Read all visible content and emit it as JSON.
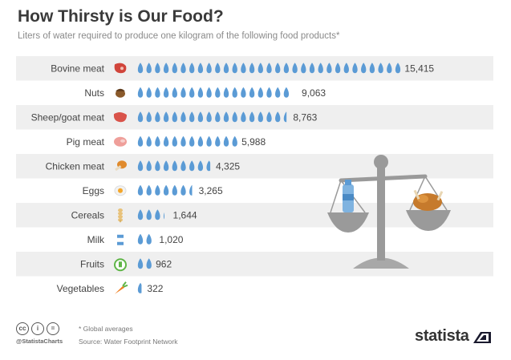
{
  "header": {
    "title": "How Thirsty is Our Food?",
    "subtitle": "Liters of water required to produce one kilogram of the following food products*"
  },
  "chart_data": {
    "type": "bar",
    "title": "How Thirsty is Our Food?",
    "subtitle": "Liters of water required to produce one kilogram of the following food products*",
    "unit_per_drop": 500,
    "categories": [
      "Bovine meat",
      "Nuts",
      "Sheep/goat meat",
      "Pig meat",
      "Chicken meat",
      "Eggs",
      "Cereals",
      "Milk",
      "Fruits",
      "Vegetables"
    ],
    "values": [
      15415,
      9063,
      8763,
      5988,
      4325,
      3265,
      1644,
      1020,
      962,
      322
    ],
    "value_labels": [
      "15,415",
      "9,063",
      "8,763",
      "5,988",
      "4,325",
      "3,265",
      "1,644",
      "1,020",
      "962",
      "322"
    ],
    "icons": [
      "steak-icon",
      "nut-icon",
      "lamb-meat-icon",
      "ham-icon",
      "chicken-leg-icon",
      "fried-egg-icon",
      "wheat-icon",
      "milk-carton-icon",
      "apple-icon",
      "carrot-icon"
    ],
    "colors": {
      "drop": "#5b9bd5",
      "row_shade": "#efefef",
      "scale": "#9a9a9a"
    }
  },
  "footer": {
    "note": "* Global averages",
    "source": "Source: Water Footprint Network",
    "handle": "@StatistaCharts",
    "brand": "statista",
    "license_icons": [
      "cc-icon",
      "by-icon",
      "nd-icon"
    ]
  }
}
